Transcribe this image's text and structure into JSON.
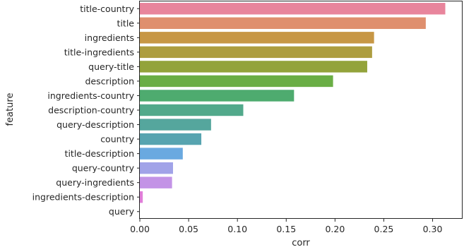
{
  "chart_data": {
    "type": "bar",
    "orientation": "horizontal",
    "xlabel": "corr",
    "ylabel": "feature",
    "xlim": [
      0,
      0.33
    ],
    "xticks": [
      {
        "value": 0.0,
        "label": "0.00"
      },
      {
        "value": 0.05,
        "label": "0.05"
      },
      {
        "value": 0.1,
        "label": "0.10"
      },
      {
        "value": 0.15,
        "label": "0.15"
      },
      {
        "value": 0.2,
        "label": "0.20"
      },
      {
        "value": 0.25,
        "label": "0.25"
      },
      {
        "value": 0.3,
        "label": "0.30"
      }
    ],
    "grid": false,
    "bars": [
      {
        "category": "title-country",
        "value": 0.313,
        "color": "#e8859c"
      },
      {
        "category": "title",
        "value": 0.293,
        "color": "#df8f6e"
      },
      {
        "category": "ingredients",
        "value": 0.24,
        "color": "#c79745"
      },
      {
        "category": "title-ingredients",
        "value": 0.238,
        "color": "#ad9d3f"
      },
      {
        "category": "query-title",
        "value": 0.233,
        "color": "#93a33b"
      },
      {
        "category": "description",
        "value": 0.198,
        "color": "#6aae45"
      },
      {
        "category": "ingredients-country",
        "value": 0.158,
        "color": "#4eab6f"
      },
      {
        "category": "description-country",
        "value": 0.106,
        "color": "#52a98b"
      },
      {
        "category": "query-description",
        "value": 0.073,
        "color": "#55a69d"
      },
      {
        "category": "country",
        "value": 0.063,
        "color": "#57a4b0"
      },
      {
        "category": "title-description",
        "value": 0.044,
        "color": "#6aa9e0"
      },
      {
        "category": "query-country",
        "value": 0.034,
        "color": "#a1a3e8"
      },
      {
        "category": "query-ingredients",
        "value": 0.033,
        "color": "#c393e6"
      },
      {
        "category": "ingredients-description",
        "value": 0.003,
        "color": "#e17fd9"
      },
      {
        "category": "query",
        "value": 0.0,
        "color": "#e886c3"
      }
    ]
  }
}
